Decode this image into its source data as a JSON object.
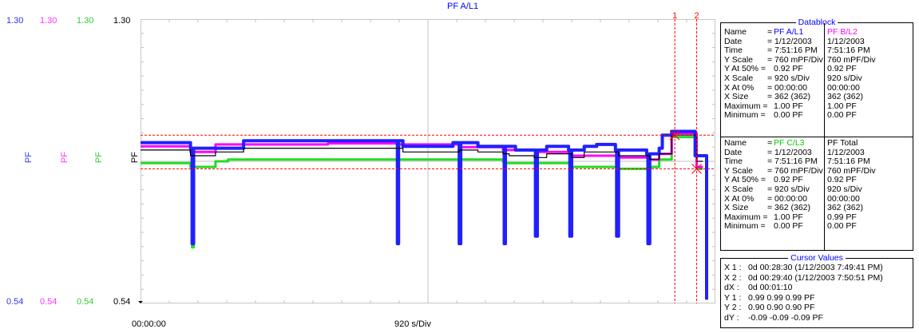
{
  "chart_data": {
    "type": "line",
    "title": "PF  A/L1",
    "xlabel": "920 s/Div",
    "x_start_label": "00:00:00",
    "ylim": [
      0.54,
      1.3
    ],
    "y_axes": [
      {
        "top": "1.30",
        "bottom": "0.54",
        "label": "PF",
        "color": "#3333ff"
      },
      {
        "top": "1.30",
        "bottom": "0.54",
        "label": "PF",
        "color": "#ff33ff"
      },
      {
        "top": "1.30",
        "bottom": "0.54",
        "label": "PF",
        "color": "#33cc33"
      },
      {
        "top": "1.30",
        "bottom": "0.54",
        "label": "PF",
        "color": "#000000"
      }
    ],
    "grid": true,
    "cursors": [
      {
        "label": "1",
        "x": 1710,
        "y": 0.99
      },
      {
        "label": "2",
        "x": 1780,
        "y": 0.9
      }
    ],
    "series": [
      {
        "name": "PF  A/L1",
        "color": "#2020ff",
        "x": [
          0,
          80,
          120,
          160,
          165,
          170,
          175,
          180,
          240,
          330,
          450,
          520,
          600,
          700,
          800,
          820,
          822,
          826,
          830,
          840,
          900,
          1000,
          1015,
          1020,
          1025,
          1040,
          1080,
          1140,
          1160,
          1164,
          1168,
          1180,
          1200,
          1240,
          1260,
          1264,
          1270,
          1300,
          1330,
          1370,
          1374,
          1380,
          1420,
          1460,
          1480,
          1520,
          1524,
          1530,
          1570,
          1620,
          1624,
          1630,
          1660,
          1670,
          1700,
          1710,
          1730,
          1760,
          1775,
          1780,
          1800,
          1812
        ],
        "y": [
          0.97,
          0.97,
          0.97,
          0.955,
          0.7,
          0.955,
          0.955,
          0.955,
          0.955,
          0.975,
          0.975,
          0.975,
          0.975,
          0.975,
          0.975,
          0.975,
          0.7,
          0.975,
          0.975,
          0.96,
          0.96,
          0.97,
          0.97,
          0.7,
          0.97,
          0.97,
          0.96,
          0.96,
          0.96,
          0.7,
          0.96,
          0.96,
          0.95,
          0.95,
          0.95,
          0.72,
          0.95,
          0.96,
          0.96,
          0.95,
          0.72,
          0.95,
          0.96,
          0.965,
          0.965,
          0.95,
          0.72,
          0.95,
          0.95,
          0.94,
          0.7,
          0.94,
          0.955,
          0.99,
          1.0,
          1.0,
          1.0,
          1.0,
          0.935,
          0.935,
          0.935,
          0.55
        ]
      },
      {
        "name": "PF  B/L2",
        "color": "#ff00ff",
        "x": [
          0,
          160,
          165,
          170,
          240,
          600,
          820,
          822,
          826,
          1020,
          1025,
          1160,
          1164,
          1168,
          1264,
          1270,
          1374,
          1380,
          1524,
          1530,
          1624,
          1630,
          1660,
          1700,
          1760,
          1780,
          1800
        ],
        "y": [
          0.96,
          0.945,
          0.71,
          0.945,
          0.965,
          0.968,
          0.965,
          0.72,
          0.965,
          0.958,
          0.958,
          0.95,
          0.72,
          0.95,
          0.935,
          0.945,
          0.73,
          0.935,
          0.735,
          0.93,
          0.71,
          0.925,
          0.94,
          0.995,
          0.995,
          0.905,
          0.905
        ]
      },
      {
        "name": "PF  C/L3",
        "color": "#22dd22",
        "x": [
          0,
          160,
          165,
          170,
          240,
          280,
          820,
          822,
          826,
          1020,
          1025,
          1160,
          1164,
          1168,
          1264,
          1270,
          1374,
          1380,
          1524,
          1530,
          1624,
          1630,
          1660,
          1700,
          1760,
          1780,
          1800
        ],
        "y": [
          0.915,
          0.905,
          0.69,
          0.905,
          0.92,
          0.925,
          0.925,
          0.7,
          0.925,
          0.925,
          0.925,
          0.92,
          0.72,
          0.915,
          0.905,
          0.915,
          0.73,
          0.905,
          0.73,
          0.9,
          0.7,
          0.905,
          0.925,
          0.985,
          0.985,
          0.9,
          0.9
        ]
      },
      {
        "name": "PF  Total",
        "color": "#000000",
        "x": [
          0,
          160,
          240,
          330,
          820,
          840,
          1020,
          1080,
          1160,
          1180,
          1260,
          1300,
          1380,
          1420,
          1530,
          1570,
          1630,
          1660,
          1700,
          1760,
          1780,
          1800
        ],
        "y": [
          0.95,
          0.935,
          0.945,
          0.955,
          0.955,
          0.945,
          0.95,
          0.945,
          0.94,
          0.935,
          0.93,
          0.94,
          0.93,
          0.945,
          0.935,
          0.935,
          0.925,
          0.94,
          0.99,
          0.99,
          0.92,
          0.92
        ]
      }
    ]
  },
  "datablock": {
    "title": "Datablock",
    "block1": {
      "name_label": "Name",
      "name_prefix": "=",
      "name_value": "PF  A/L1",
      "name_value_color": "#0000ff",
      "name2": "PF  B/L2",
      "name2_color": "#ff00ff",
      "rows": [
        {
          "label": "Date",
          "value": "= 1/12/2003",
          "value2": "1/12/2003"
        },
        {
          "label": "Time",
          "value": "= 7:51:16 PM",
          "value2": "7:51:16 PM"
        },
        {
          "label": "Y Scale",
          "value": "= 760    mPF/Div",
          "value2": "760    mPF/Div"
        },
        {
          "label": "Y At 50% =",
          "value": "0.92 PF",
          "value2": "0.92 PF"
        },
        {
          "label": "X Scale",
          "value": "= 920    s/Div",
          "value2": "920    s/Div"
        },
        {
          "label": "X At 0%",
          "value": "= 00:00:00",
          "value2": "00:00:00"
        },
        {
          "label": "X Size",
          "value": "= 362 (362)",
          "value2": "362 (362)"
        },
        {
          "label": "Maximum =",
          "value": "1.00 PF",
          "value2": "1.00 PF"
        },
        {
          "label": "Minimum =",
          "value": "0.00 PF",
          "value2": "0.00 PF"
        }
      ]
    },
    "block2": {
      "name_label": "Name",
      "name_prefix": "=",
      "name_value": "PF  C/L3",
      "name_value_color": "#00cc00",
      "name2": "PF  Total",
      "name2_color": "#000000",
      "rows": [
        {
          "label": "Date",
          "value": "= 1/12/2003",
          "value2": "1/12/2003"
        },
        {
          "label": "Time",
          "value": "= 7:51:16 PM",
          "value2": "7:51:16 PM"
        },
        {
          "label": "Y Scale",
          "value": "= 760    mPF/Div",
          "value2": "760    mPF/Div"
        },
        {
          "label": "Y At 50% =",
          "value": "0.92 PF",
          "value2": "0.92 PF"
        },
        {
          "label": "X Scale",
          "value": "= 920    s/Div",
          "value2": "920    s/Div"
        },
        {
          "label": "X At 0%",
          "value": "= 00:00:00",
          "value2": "00:00:00"
        },
        {
          "label": "X Size",
          "value": "= 362 (362)",
          "value2": "362 (362)"
        },
        {
          "label": "Maximum =",
          "value": "1.00 PF",
          "value2": "0.99 PF"
        },
        {
          "label": "Minimum =",
          "value": "0.00 PF",
          "value2": "0.00 PF"
        }
      ]
    }
  },
  "cursor_values": {
    "title": "Cursor Values",
    "rows": [
      {
        "label": "X 1 :",
        "value": "0d 00:28:30 (1/12/2003 7:49:41 PM)"
      },
      {
        "label": "X 2 :",
        "value": "0d 00:29:40 (1/12/2003 7:50:51 PM)"
      },
      {
        "label": "dX :",
        "value": "0d 00:01:10"
      },
      {
        "label": "Y 1 :",
        "value": "0.99   0.99   0.99 PF"
      },
      {
        "label": "Y 2 :",
        "value": "0.90   0.90   0.90 PF"
      },
      {
        "label": "dY :",
        "value": "-0.09   -0.09   -0.09 PF"
      }
    ]
  }
}
